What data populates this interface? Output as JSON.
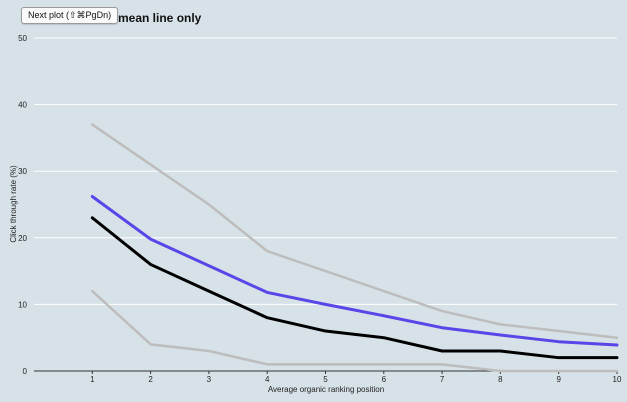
{
  "next_plot_button": {
    "label": "Next plot (⇧⌘PgDn)"
  },
  "chart_data": {
    "type": "line",
    "title": "mean line only",
    "xlabel": "Average organic ranking position",
    "ylabel": "Click through rate (%)",
    "x": [
      1,
      2,
      3,
      4,
      5,
      6,
      7,
      8,
      9,
      10
    ],
    "xlim": [
      0,
      10
    ],
    "ylim": [
      0,
      50
    ],
    "yticks": [
      0,
      10,
      20,
      30,
      40,
      50
    ],
    "grid": true,
    "series": [
      {
        "color": "#bdbdbd",
        "values": [
          37,
          31,
          25,
          18,
          15,
          12,
          9,
          7,
          6,
          5
        ]
      },
      {
        "color": "#bdbdbd",
        "values": [
          12,
          4,
          3,
          1,
          1,
          1,
          1,
          0,
          0,
          0
        ]
      },
      {
        "color": "#5a46e8",
        "values": [
          26.2,
          19.8,
          15.8,
          11.8,
          10,
          8.3,
          6.5,
          5.4,
          4.4,
          3.9
        ]
      },
      {
        "color": "#000000",
        "values": [
          23,
          16,
          12,
          8,
          6,
          5,
          3,
          3,
          2,
          2
        ]
      }
    ]
  }
}
